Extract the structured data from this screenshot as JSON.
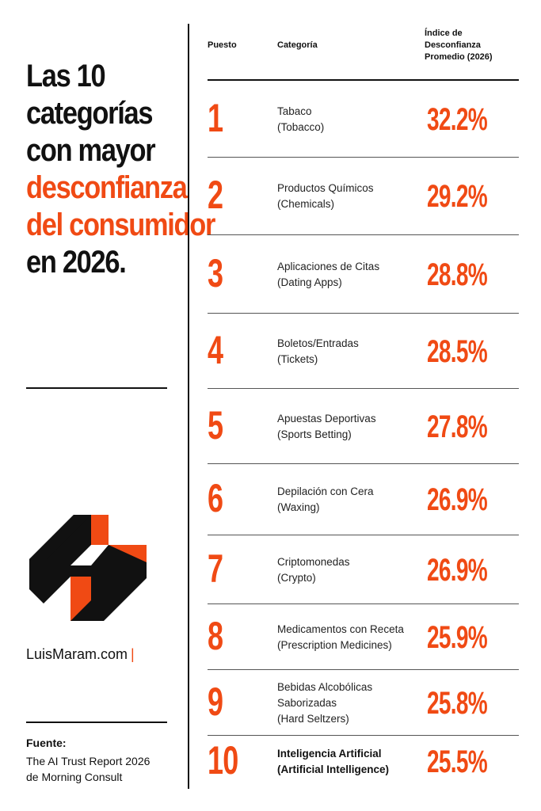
{
  "title": {
    "line1": "Las 10",
    "line2": "categorías",
    "line3": "con mayor",
    "line4": "desconfianza",
    "line5": "del consumidor",
    "line6": "en 2026."
  },
  "brand": {
    "name": "LuisMaram.com",
    "bar": "|"
  },
  "source": {
    "label": "Fuente:",
    "line1": "The AI Trust Report 2026",
    "line2": "de Morning Consult"
  },
  "table": {
    "headers": {
      "rank": "Puesto",
      "category": "Categoría",
      "index_line1": "Índice de",
      "index_line2": "Desconfianza",
      "index_line3": "Promedio (2026)"
    }
  },
  "colors": {
    "accent": "#f04a14",
    "text": "#111111",
    "background": "#ffffff"
  },
  "chart_data": {
    "type": "table",
    "title": "Las 10 categorías con mayor desconfianza del consumidor en 2026.",
    "columns": [
      "Puesto",
      "Categoría",
      "Índice de Desconfianza Promedio (2026)"
    ],
    "rows": [
      {
        "rank": "1",
        "category_es": "Tabaco",
        "category_en": "(Tobacco)",
        "value": 32.2,
        "value_label": "32.2%"
      },
      {
        "rank": "2",
        "category_es": "Productos Químicos",
        "category_en": "(Chemicals)",
        "value": 29.2,
        "value_label": "29.2%"
      },
      {
        "rank": "3",
        "category_es": "Aplicaciones de Citas",
        "category_en": "(Dating Apps)",
        "value": 28.8,
        "value_label": "28.8%"
      },
      {
        "rank": "4",
        "category_es": "Boletos/Entradas",
        "category_en": "(Tickets)",
        "value": 28.5,
        "value_label": "28.5%"
      },
      {
        "rank": "5",
        "category_es": "Apuestas Deportivas",
        "category_en": "(Sports Betting)",
        "value": 27.8,
        "value_label": "27.8%"
      },
      {
        "rank": "6",
        "category_es": "Depilación con Cera",
        "category_en": "(Waxing)",
        "value": 26.9,
        "value_label": "26.9%"
      },
      {
        "rank": "7",
        "category_es": "Criptomonedas",
        "category_en": "(Crypto)",
        "value": 26.9,
        "value_label": "26.9%"
      },
      {
        "rank": "8",
        "category_es": "Medicamentos con Receta",
        "category_en": "(Prescription Medicines)",
        "value": 25.9,
        "value_label": "25.9%"
      },
      {
        "rank": "9",
        "category_es": "Bebidas Alcobólicas Saborizadas",
        "category_en": "(Hard Seltzers)",
        "value": 25.8,
        "value_label": "25.8%"
      },
      {
        "rank": "10",
        "category_es": "Inteligencia Artificial",
        "category_en": "(Artificial Intelligence)",
        "value": 25.5,
        "value_label": "25.5%"
      }
    ]
  }
}
